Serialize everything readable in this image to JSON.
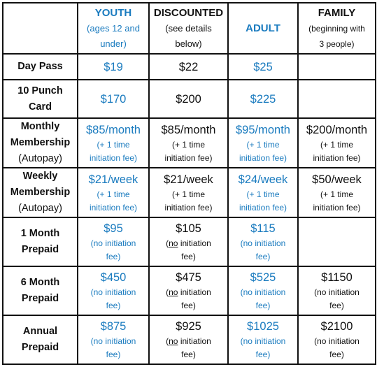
{
  "columns": [
    {
      "key": "youth",
      "title": "YOUTH",
      "sub": [
        "(ages 12 and",
        "under)"
      ]
    },
    {
      "key": "discounted",
      "title": "DISCOUNTED",
      "sub": [
        "(see details",
        "below)"
      ]
    },
    {
      "key": "adult",
      "title": "ADULT",
      "sub": []
    },
    {
      "key": "family",
      "title": "FAMILY",
      "sub": [
        "(beginning with",
        "3 people)"
      ]
    }
  ],
  "colors": {
    "accent": "#1a7bbf",
    "text": "#111111",
    "border": "#111111"
  },
  "rows": {
    "day_pass": {
      "label": [
        "Day Pass"
      ],
      "cells": {
        "youth": {
          "price": "$19"
        },
        "discounted": {
          "price": "$22"
        },
        "adult": {
          "price": "$25"
        },
        "family": {
          "price": ""
        }
      }
    },
    "punch_card": {
      "label": [
        "10 Punch",
        "Card"
      ],
      "cells": {
        "youth": {
          "price": "$170"
        },
        "discounted": {
          "price": "$200"
        },
        "adult": {
          "price": "$225"
        },
        "family": {
          "price": ""
        }
      }
    },
    "monthly": {
      "label": [
        "Monthly",
        "Membership"
      ],
      "label_note": "(Autopay)",
      "cells": {
        "youth": {
          "price": "$85/month",
          "note": [
            "(+ 1 time",
            "initiation fee)"
          ]
        },
        "discounted": {
          "price": "$85/month",
          "note": [
            "(+ 1 time",
            "initiation fee)"
          ]
        },
        "adult": {
          "price": "$95/month",
          "note": [
            "(+ 1 time",
            "initiation fee)"
          ]
        },
        "family": {
          "price": "$200/month",
          "note": [
            "(+ 1 time",
            "initiation fee)"
          ]
        }
      }
    },
    "weekly": {
      "label": [
        "Weekly",
        "Membership"
      ],
      "label_note": "(Autopay)",
      "cells": {
        "youth": {
          "price": "$21/week",
          "note": [
            "(+ 1 time",
            "initiation fee)"
          ]
        },
        "discounted": {
          "price": "$21/week",
          "note": [
            "(+ 1 time",
            "initiation fee)"
          ]
        },
        "adult": {
          "price": "$24/week",
          "note": [
            "(+ 1 time",
            "initiation fee)"
          ]
        },
        "family": {
          "price": "$50/week",
          "note": [
            "(+ 1 time",
            "initiation fee)"
          ]
        }
      }
    },
    "month1": {
      "label": [
        "1 Month",
        "Prepaid"
      ],
      "cells": {
        "youth": {
          "price": "$95",
          "note_a": "(no initiation",
          "note_b": "fee)"
        },
        "discounted": {
          "price": "$105",
          "note_pre": "(",
          "note_ul": "no",
          "note_post": " initiation",
          "note_b": "fee)"
        },
        "adult": {
          "price": "$115",
          "note_a": "(no initiation",
          "note_b": "fee)"
        },
        "family": {
          "price": ""
        }
      }
    },
    "month6": {
      "label": [
        "6 Month",
        "Prepaid"
      ],
      "cells": {
        "youth": {
          "price": "$450",
          "note_a": "(no initiation",
          "note_b": "fee)"
        },
        "discounted": {
          "price": "$475",
          "note_pre": "(",
          "note_ul": "no",
          "note_post": " initiation",
          "note_b": "fee)"
        },
        "adult": {
          "price": "$525",
          "note_a": "(no initiation",
          "note_b": "fee)"
        },
        "family": {
          "price": "$1150",
          "note_a": "(no initiation",
          "note_b": "fee)"
        }
      }
    },
    "annual": {
      "label": [
        "Annual",
        "Prepaid"
      ],
      "cells": {
        "youth": {
          "price": "$875",
          "note_a": "(no initiation",
          "note_b": "fee)"
        },
        "discounted": {
          "price": "$925",
          "note_pre": "(",
          "note_ul": "no",
          "note_post": " initiation",
          "note_b": "fee)"
        },
        "adult": {
          "price": "$1025",
          "note_a": "(no initiation",
          "note_b": "fee)"
        },
        "family": {
          "price": "$2100",
          "note_a": "(no initiation",
          "note_b": "fee)"
        }
      }
    }
  }
}
